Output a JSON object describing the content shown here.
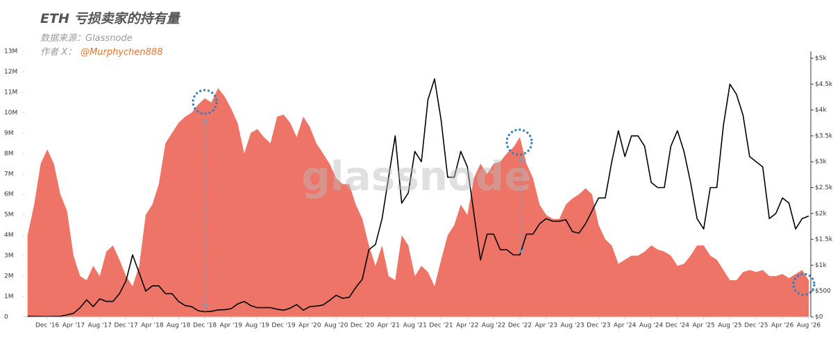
{
  "chart_data": {
    "type": "area_line",
    "title": "ETH 亏损卖家的持有量",
    "subtitle": "数据来源：Glassnode",
    "author_label": "作者 X：",
    "author_handle": "@Murphychen888",
    "watermark": "glassnode",
    "x": [
      "Sep '16",
      "Oct '16",
      "Nov '16",
      "Dec '16",
      "Jan '17",
      "Feb '17",
      "Mar '17",
      "Apr '17",
      "May '17",
      "Jun '17",
      "Jul '17",
      "Aug '17",
      "Sep '17",
      "Oct '17",
      "Nov '17",
      "Dec '17",
      "Jan '18",
      "Feb '18",
      "Mar '18",
      "Apr '18",
      "May '18",
      "Jun '18",
      "Jul '18",
      "Aug '18",
      "Sep '18",
      "Oct '18",
      "Nov '18",
      "Dec '18",
      "Jan '19",
      "Feb '19",
      "Mar '19",
      "Apr '19",
      "May '19",
      "Jun '19",
      "Jul '19",
      "Aug '19",
      "Sep '19",
      "Oct '19",
      "Nov '19",
      "Dec '19",
      "Jan '20",
      "Feb '20",
      "Mar '20",
      "Apr '20",
      "May '20",
      "Jun '20",
      "Jul '20",
      "Aug '20",
      "Sep '20",
      "Oct '20",
      "Nov '20",
      "Dec '20",
      "Jan '21",
      "Feb '21",
      "Mar '21",
      "Apr '21",
      "May '21",
      "Jun '21",
      "Jul '21",
      "Aug '21",
      "Sep '21",
      "Oct '21",
      "Nov '21",
      "Dec '21",
      "Jan '22",
      "Feb '22",
      "Mar '22",
      "Apr '22",
      "May '22",
      "Jun '22",
      "Jul '22",
      "Aug '22",
      "Sep '22",
      "Oct '22",
      "Nov '22",
      "Dec '22",
      "Jan '23",
      "Feb '23",
      "Mar '23",
      "Apr '23",
      "May '23",
      "Jun '23",
      "Jul '23",
      "Aug '23",
      "Sep '23",
      "Oct '23",
      "Nov '23",
      "Dec '23",
      "Jan '24",
      "Feb '24",
      "Mar '24",
      "Apr '24",
      "May '24",
      "Jun '24",
      "Jul '24",
      "Aug '24",
      "Sep '24",
      "Oct '24",
      "Nov '24",
      "Dec '24",
      "Jan '25",
      "Feb '25",
      "Mar '25",
      "Apr '25",
      "May '25",
      "Jun '25",
      "Jul '25",
      "Aug '25",
      "Sep '25",
      "Oct '25",
      "Nov '25",
      "Dec '25",
      "Jan '26",
      "Feb '26",
      "Mar '26",
      "Apr '26",
      "May '26",
      "Jun '26",
      "Jul '26",
      "Aug '26"
    ],
    "xticks": [
      "Dec '16",
      "Apr '17",
      "Aug '17",
      "Dec '17",
      "Apr '18",
      "Aug '18",
      "Dec '18",
      "Apr '19",
      "Aug '19",
      "Dec '19",
      "Apr '20",
      "Aug '20",
      "Dec '20",
      "Apr '21",
      "Aug '21",
      "Dec '21",
      "Apr '22",
      "Aug '22",
      "Dec '22",
      "Apr '23",
      "Aug '23",
      "Dec '23",
      "Apr '24",
      "Aug '24",
      "Dec '24",
      "Apr '25",
      "Aug '25",
      "Dec '25",
      "Apr '26",
      "Aug '26"
    ],
    "series": [
      {
        "kind": "area",
        "color": "#ee7468",
        "values": [
          4.0,
          5.5,
          7.5,
          8.2,
          7.5,
          6.0,
          5.2,
          3.0,
          2.0,
          1.8,
          2.5,
          2.0,
          3.2,
          3.5,
          2.8,
          2.0,
          1.5,
          2.5,
          5.0,
          5.5,
          6.5,
          8.5,
          9.0,
          9.5,
          9.8,
          10.0,
          10.4,
          10.7,
          10.5,
          11.2,
          10.8,
          10.2,
          9.5,
          8.0,
          9.0,
          9.2,
          8.8,
          8.5,
          9.8,
          9.9,
          9.5,
          8.8,
          9.8,
          9.3,
          8.5,
          8.0,
          7.5,
          6.8,
          6.5,
          6.5,
          5.5,
          4.8,
          3.5,
          2.5,
          3.5,
          2.0,
          1.8,
          4.0,
          3.5,
          2.0,
          2.5,
          2.2,
          1.5,
          2.8,
          4.0,
          4.5,
          5.5,
          5.0,
          6.8,
          7.5,
          7.0,
          7.5,
          7.6,
          8.0,
          8.3,
          8.8,
          7.5,
          6.8,
          5.5,
          5.0,
          4.8,
          4.8,
          5.5,
          5.8,
          6.0,
          6.3,
          6.0,
          4.5,
          3.8,
          3.5,
          2.6,
          2.8,
          3.0,
          3.0,
          3.2,
          3.5,
          3.3,
          3.2,
          3.0,
          2.5,
          2.6,
          3.0,
          3.5,
          3.5,
          3.0,
          2.8,
          2.3,
          1.8,
          1.8,
          2.2,
          2.3,
          2.2,
          2.3,
          2.0,
          2.0,
          2.1,
          1.9,
          2.1,
          2.3,
          1.8
        ]
      },
      {
        "kind": "line",
        "axis": "y2",
        "color": "#000000",
        "values": [
          12,
          11,
          9,
          8,
          10,
          13,
          40,
          70,
          180,
          330,
          200,
          350,
          300,
          300,
          450,
          700,
          1200,
          850,
          500,
          600,
          600,
          450,
          450,
          300,
          220,
          200,
          120,
          100,
          110,
          135,
          140,
          160,
          250,
          300,
          220,
          180,
          180,
          180,
          150,
          130,
          170,
          240,
          130,
          200,
          210,
          230,
          320,
          420,
          360,
          380,
          570,
          730,
          1300,
          1400,
          1900,
          2700,
          3500,
          2200,
          2400,
          3200,
          3000,
          4200,
          4600,
          3800,
          2700,
          2700,
          3200,
          2900,
          2000,
          1100,
          1600,
          1600,
          1300,
          1300,
          1200,
          1200,
          1600,
          1600,
          1800,
          1900,
          1850,
          1850,
          1880,
          1650,
          1620,
          1800,
          2050,
          2300,
          2300,
          3000,
          3600,
          3100,
          3500,
          3500,
          3300,
          2600,
          2500,
          2500,
          3300,
          3600,
          3200,
          2600,
          1900,
          1700,
          2500,
          2500,
          3700,
          4500,
          4300,
          3900,
          3100,
          3000,
          2900,
          1900,
          2000,
          2300,
          2200,
          1700,
          1900,
          1950
        ]
      }
    ],
    "ylim": [
      0,
      13
    ],
    "yticks": [
      {
        "value": 0,
        "label": "0"
      },
      {
        "value": 1,
        "label": "1M"
      },
      {
        "value": 2,
        "label": "2M"
      },
      {
        "value": 3,
        "label": "3M"
      },
      {
        "value": 4,
        "label": "4M"
      },
      {
        "value": 5,
        "label": "5M"
      },
      {
        "value": 6,
        "label": "6M"
      },
      {
        "value": 7,
        "label": "7M"
      },
      {
        "value": 8,
        "label": "8M"
      },
      {
        "value": 9,
        "label": "9M"
      },
      {
        "value": 10,
        "label": "10M"
      },
      {
        "value": 11,
        "label": "11M"
      },
      {
        "value": 12,
        "label": "12M"
      },
      {
        "value": 13,
        "label": "13M"
      }
    ],
    "y2lim": [
      0,
      5134
    ],
    "y2ticks": [
      {
        "value": 0,
        "label": "$0"
      },
      {
        "value": 500,
        "label": "$500"
      },
      {
        "value": 1000,
        "label": "$1k"
      },
      {
        "value": 1500,
        "label": "$1.5k"
      },
      {
        "value": 2000,
        "label": "$2k"
      },
      {
        "value": 2500,
        "label": "$2.5k"
      },
      {
        "value": 3000,
        "label": "$3k"
      },
      {
        "value": 3500,
        "label": "$3.5k"
      },
      {
        "value": 4000,
        "label": "$4k"
      },
      {
        "value": 4500,
        "label": "$4.5k"
      },
      {
        "value": 5000,
        "label": "$5k"
      }
    ]
  }
}
